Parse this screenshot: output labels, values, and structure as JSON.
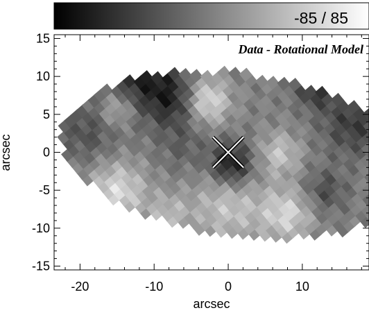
{
  "chart_data": {
    "type": "heatmap",
    "colorbar": {
      "label": "-85 / 85",
      "range": [
        -85,
        85
      ],
      "colormap": [
        "#000000",
        "#ffffff"
      ]
    },
    "panel_label": "Data - Rotational Model",
    "xlabel": "arcsec",
    "ylabel": "arcsec",
    "xlim": [
      -23.5,
      19
    ],
    "ylim": [
      -15.5,
      15.5
    ],
    "x_ticks": [
      -20,
      -10,
      0,
      10
    ],
    "x_tick_labels": [
      "-20",
      "-10",
      "0",
      "10"
    ],
    "y_ticks": [
      -15,
      -10,
      -5,
      0,
      5,
      10,
      15
    ],
    "y_tick_labels": [
      "-15",
      "-10",
      "-5",
      "0",
      "5",
      "10",
      "15"
    ],
    "center_marker": {
      "x": 0,
      "y": 0,
      "symbol": "X"
    },
    "field_ellipse": {
      "cx": 1.5,
      "cy": -0.3,
      "rx": 24,
      "ry": 10.6,
      "angle_deg": -7
    },
    "pixel_spacing": 1.05,
    "pixel_rotation_deg": 40,
    "features": [
      {
        "x": -12,
        "y": 10,
        "sigma": 3.5,
        "amp": -60
      },
      {
        "x": -7,
        "y": 7,
        "sigma": 2.5,
        "amp": -50
      },
      {
        "x": 12,
        "y": 9,
        "sigma": 2.0,
        "amp": -55
      },
      {
        "x": 17,
        "y": 4,
        "sigma": 3.0,
        "amp": -45
      },
      {
        "x": 0.5,
        "y": -1.5,
        "sigma": 2.0,
        "amp": -75
      },
      {
        "x": -19,
        "y": 3,
        "sigma": 3.0,
        "amp": -30
      },
      {
        "x": -3,
        "y": 7,
        "sigma": 2.2,
        "amp": 70
      },
      {
        "x": -15,
        "y": 6,
        "sigma": 1.8,
        "amp": 50
      },
      {
        "x": -15,
        "y": -5,
        "sigma": 2.8,
        "amp": 60
      },
      {
        "x": 0,
        "y": -7,
        "sigma": 3.5,
        "amp": 45
      },
      {
        "x": 8,
        "y": -8,
        "sigma": 2.5,
        "amp": 55
      },
      {
        "x": 7,
        "y": 0,
        "sigma": 2.0,
        "amp": 45
      },
      {
        "x": -8,
        "y": -8,
        "sigma": 2.0,
        "amp": 35
      },
      {
        "x": -6,
        "y": 1,
        "sigma": 2.5,
        "amp": -20
      },
      {
        "x": 13,
        "y": -5,
        "sigma": 2.0,
        "amp": -35
      }
    ]
  }
}
